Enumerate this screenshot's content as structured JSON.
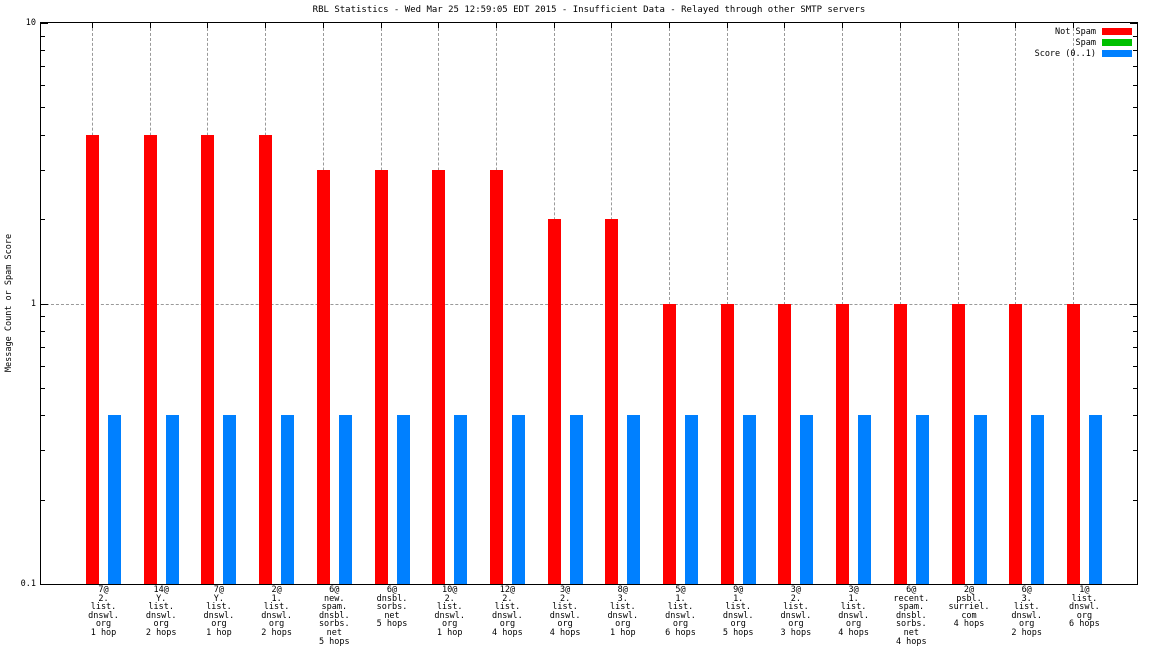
{
  "title": "RBL Statistics - Wed Mar 25 12:59:05 EDT 2015 - Insufficient Data - Relayed through other SMTP servers",
  "chart_data": {
    "type": "bar",
    "scale": "log",
    "title": "RBL Statistics - Wed Mar 25 12:59:05 EDT 2015 - Insufficient Data - Relayed through other SMTP servers",
    "xlabel": "",
    "ylabel": "Message Count or Spam Score",
    "ylim": [
      0.1,
      10
    ],
    "ymajor_ticks": [
      0.1,
      1,
      10
    ],
    "grid": true,
    "legend_position": "top-right",
    "colors": {
      "not_spam": "#ff0000",
      "spam": "#00c000",
      "score": "#0080ff",
      "grid": "#9a9a9a",
      "axis": "#000000",
      "background": "#ffffff"
    },
    "categories": [
      [
        "7@",
        "2.",
        "list.",
        "dnswl.",
        "org",
        "1 hop"
      ],
      [
        "14@",
        "Y.",
        "list.",
        "dnswl.",
        "org",
        "2 hops"
      ],
      [
        "7@",
        "Y.",
        "list.",
        "dnswl.",
        "org",
        "1 hop"
      ],
      [
        "2@",
        "1.",
        "list.",
        "dnswl.",
        "org",
        "2 hops"
      ],
      [
        "6@",
        "new.",
        "spam.",
        "dnsbl.",
        "sorbs.",
        "net",
        "5 hops"
      ],
      [
        "6@",
        "dnsbl.",
        "sorbs.",
        "net",
        "5 hops"
      ],
      [
        "10@",
        "2.",
        "list.",
        "dnswl.",
        "org",
        "1 hop"
      ],
      [
        "12@",
        "2.",
        "list.",
        "dnswl.",
        "org",
        "4 hops"
      ],
      [
        "3@",
        "2.",
        "list.",
        "dnswl.",
        "org",
        "4 hops"
      ],
      [
        "8@",
        "3.",
        "list.",
        "dnswl.",
        "org",
        "1 hop"
      ],
      [
        "5@",
        "1.",
        "list.",
        "dnswl.",
        "org",
        "6 hops"
      ],
      [
        "9@",
        "1.",
        "list.",
        "dnswl.",
        "org",
        "5 hops"
      ],
      [
        "3@",
        "2.",
        "list.",
        "dnswl.",
        "org",
        "3 hops"
      ],
      [
        "3@",
        "1.",
        "list.",
        "dnswl.",
        "org",
        "4 hops"
      ],
      [
        "6@",
        "recent.",
        "spam.",
        "dnsbl.",
        "sorbs.",
        "net",
        "4 hops"
      ],
      [
        "2@",
        "psbl.",
        "surriel.",
        "com",
        "4 hops"
      ],
      [
        "6@",
        "3.",
        "list.",
        "dnswl.",
        "org",
        "2 hops"
      ],
      [
        "1@",
        "list.",
        "dnswl.",
        "org",
        "6 hops"
      ]
    ],
    "series": [
      {
        "name": "Not Spam",
        "color": "#ff0000",
        "values": [
          4,
          4,
          4,
          4,
          3,
          3,
          3,
          3,
          2,
          2,
          1,
          1,
          1,
          1,
          1,
          1,
          1,
          1
        ]
      },
      {
        "name": "Spam",
        "color": "#00c000",
        "values": [
          0,
          0,
          0,
          0,
          0,
          0,
          0,
          0,
          0,
          0,
          0,
          0,
          0,
          0,
          0,
          0,
          0,
          0
        ]
      },
      {
        "name": "Score (0..1)",
        "color": "#0080ff",
        "values": [
          0.4,
          0.4,
          0.4,
          0.4,
          0.4,
          0.4,
          0.4,
          0.4,
          0.4,
          0.4,
          0.4,
          0.4,
          0.4,
          0.4,
          0.4,
          0.4,
          0.4,
          0.4
        ]
      }
    ]
  }
}
